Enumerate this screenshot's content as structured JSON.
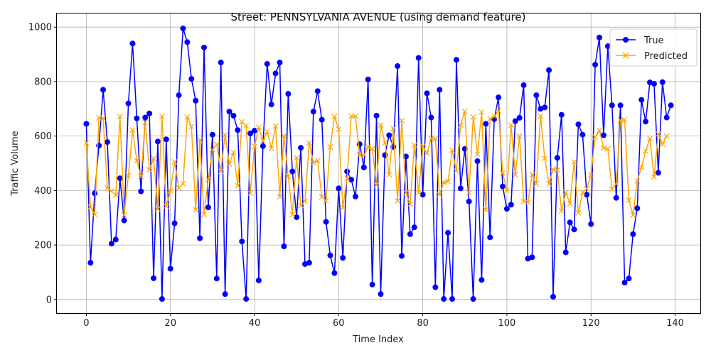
{
  "chart_data": {
    "type": "line",
    "title": "Street: PENNSYLVANIA AVENUE (using demand feature)",
    "xlabel": "Time Index",
    "ylabel": "Traffic Volume",
    "xlim": [
      -7,
      146
    ],
    "ylim": [
      -50,
      1050
    ],
    "xticks": [
      0,
      20,
      40,
      60,
      80,
      100,
      120,
      140
    ],
    "yticks": [
      0,
      200,
      400,
      600,
      800,
      1000
    ],
    "grid": true,
    "legend_position": "top-right",
    "series": [
      {
        "name": "True",
        "color": "#0000ff",
        "marker": "circle",
        "values": [
          645,
          135,
          390,
          565,
          770,
          578,
          205,
          220,
          445,
          290,
          720,
          940,
          665,
          397,
          668,
          683,
          78,
          580,
          2,
          588,
          113,
          280,
          750,
          995,
          945,
          810,
          730,
          225,
          925,
          338,
          605,
          77,
          870,
          20,
          690,
          675,
          622,
          213,
          2,
          610,
          620,
          70,
          563,
          865,
          716,
          830,
          870,
          195,
          755,
          470,
          302,
          557,
          130,
          135,
          690,
          765,
          660,
          285,
          162,
          97,
          408,
          153,
          470,
          440,
          378,
          570,
          485,
          808,
          55,
          675,
          20,
          530,
          603,
          560,
          857,
          160,
          525,
          240,
          265,
          887,
          385,
          757,
          668,
          45,
          770,
          2,
          245,
          2,
          880,
          408,
          553,
          360,
          2,
          508,
          72,
          645,
          228,
          662,
          742,
          415,
          333,
          348,
          655,
          667,
          787,
          150,
          155,
          750,
          700,
          705,
          842,
          10,
          520,
          678,
          173,
          283,
          257,
          643,
          605,
          385,
          277,
          862,
          962,
          603,
          930,
          713,
          373,
          713,
          62,
          77,
          240,
          335,
          733,
          653,
          797,
          792,
          465,
          798,
          668,
          713
        ]
      },
      {
        "name": "Predicted",
        "color": "#ffa500",
        "marker": "x",
        "values": [
          575,
          340,
          312,
          667,
          665,
          410,
          398,
          383,
          672,
          310,
          455,
          622,
          510,
          452,
          650,
          476,
          518,
          332,
          672,
          342,
          400,
          505,
          410,
          425,
          670,
          635,
          330,
          585,
          312,
          440,
          550,
          570,
          470,
          605,
          497,
          540,
          418,
          652,
          638,
          390,
          562,
          632,
          582,
          616,
          555,
          637,
          378,
          600,
          452,
          312,
          520,
          345,
          360,
          575,
          502,
          510,
          377,
          362,
          560,
          672,
          625,
          337,
          445,
          673,
          673,
          530,
          530,
          560,
          553,
          420,
          640,
          575,
          458,
          628,
          362,
          657,
          392,
          350,
          567,
          392,
          562,
          537,
          591,
          590,
          385,
          430,
          433,
          548,
          472,
          640,
          690,
          392,
          670,
          533,
          688,
          330,
          663,
          672,
          693,
          465,
          400,
          640,
          458,
          600,
          360,
          357,
          458,
          425,
          673,
          518,
          425,
          478,
          475,
          325,
          393,
          352,
          505,
          318,
          393,
          407,
          458,
          597,
          621,
          556,
          553,
          405,
          425,
          658,
          660,
          365,
          310,
          435,
          485,
          545,
          591,
          450,
          608,
          570,
          600
        ]
      }
    ]
  }
}
